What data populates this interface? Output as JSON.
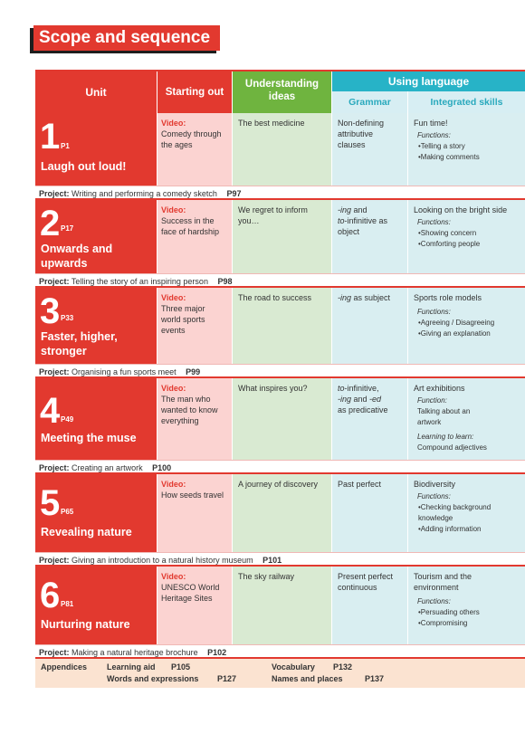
{
  "title": "Scope and sequence",
  "header": {
    "unit": "Unit",
    "starting_out": "Starting out",
    "understanding_ideas": "Understanding ideas",
    "using_language": "Using language",
    "grammar": "Grammar",
    "integrated_skills": "Integrated skills"
  },
  "units": [
    {
      "num": "1",
      "page": "P1",
      "name": "Laugh out loud!",
      "video_label": "Video:",
      "video": "Comedy through the ages",
      "understanding": "The best medicine",
      "grammar": "Non-defining attributive clauses",
      "skills": "Fun time!",
      "functions_label": "Functions:",
      "functions": [
        "•Telling a story",
        "•Making comments"
      ],
      "project_label": "Project:",
      "project": "Writing and performing a comedy sketch",
      "project_page": "P97"
    },
    {
      "num": "2",
      "page": "P17",
      "name": "Onwards and upwards",
      "video_label": "Video:",
      "video": "Success in the face of hardship",
      "understanding": "We regret to inform you…",
      "grammar_it1": "-ing",
      "grammar_t1": " and ",
      "grammar_it2": "to",
      "grammar_t2": "-infinitive as object",
      "skills": "Looking on the bright side",
      "functions_label": "Functions:",
      "functions": [
        "•Showing concern",
        "•Comforting people"
      ],
      "project_label": "Project:",
      "project": "Telling the story of an inspiring person",
      "project_page": "P98"
    },
    {
      "num": "3",
      "page": "P33",
      "name": "Faster, higher, stronger",
      "video_label": "Video:",
      "video": "Three major world sports events",
      "understanding": "The road to success",
      "grammar_it1": "-ing",
      "grammar_t1": " as subject",
      "skills": "Sports role models",
      "functions_label": "Functions:",
      "functions": [
        "•Agreeing / Disagreeing",
        "•Giving an explanation"
      ],
      "project_label": "Project:",
      "project": "Organising a fun sports meet",
      "project_page": "P99"
    },
    {
      "num": "4",
      "page": "P49",
      "name": "Meeting the muse",
      "video_label": "Video:",
      "video": "The man who wanted to know everything",
      "understanding": "What inspires you?",
      "grammar_it1": "to",
      "grammar_t1": "-infinitive,",
      "grammar_it2": "-ing",
      "grammar_t2": " and ",
      "grammar_it3": "-ed",
      "grammar_t3": " as predicative",
      "skills": "Art exhibitions",
      "functions_label": "Function:",
      "function_text": "Talking about an artwork",
      "learning_label": "Learning to learn:",
      "learning_text": "Compound adjectives",
      "project_label": "Project:",
      "project": "Creating an artwork",
      "project_page": "P100"
    },
    {
      "num": "5",
      "page": "P65",
      "name": "Revealing nature",
      "video_label": "Video:",
      "video": "How seeds travel",
      "understanding": "A journey of discovery",
      "grammar": "Past perfect",
      "skills": "Biodiversity",
      "functions_label": "Functions:",
      "functions": [
        "•Checking background knowledge",
        "•Adding information"
      ],
      "project_label": "Project:",
      "project": "Giving an introduction to a natural history museum",
      "project_page": "P101"
    },
    {
      "num": "6",
      "page": "P81",
      "name": "Nurturing nature",
      "video_label": "Video:",
      "video": "UNESCO World Heritage Sites",
      "understanding": "The sky railway",
      "grammar": "Present perfect continuous",
      "skills": "Tourism and the environment",
      "functions_label": "Functions:",
      "functions": [
        "•Persuading others",
        "•Compromising"
      ],
      "project_label": "Project:",
      "project": "Making a natural heritage brochure",
      "project_page": "P102"
    }
  ],
  "appendices": {
    "label": "Appendices",
    "learning_aid": "Learning aid",
    "learning_aid_page": "P105",
    "vocabulary": "Vocabulary",
    "vocabulary_page": "P132",
    "words": "Words and expressions",
    "words_page": "P127",
    "names": "Names and places",
    "names_page": "P137"
  }
}
